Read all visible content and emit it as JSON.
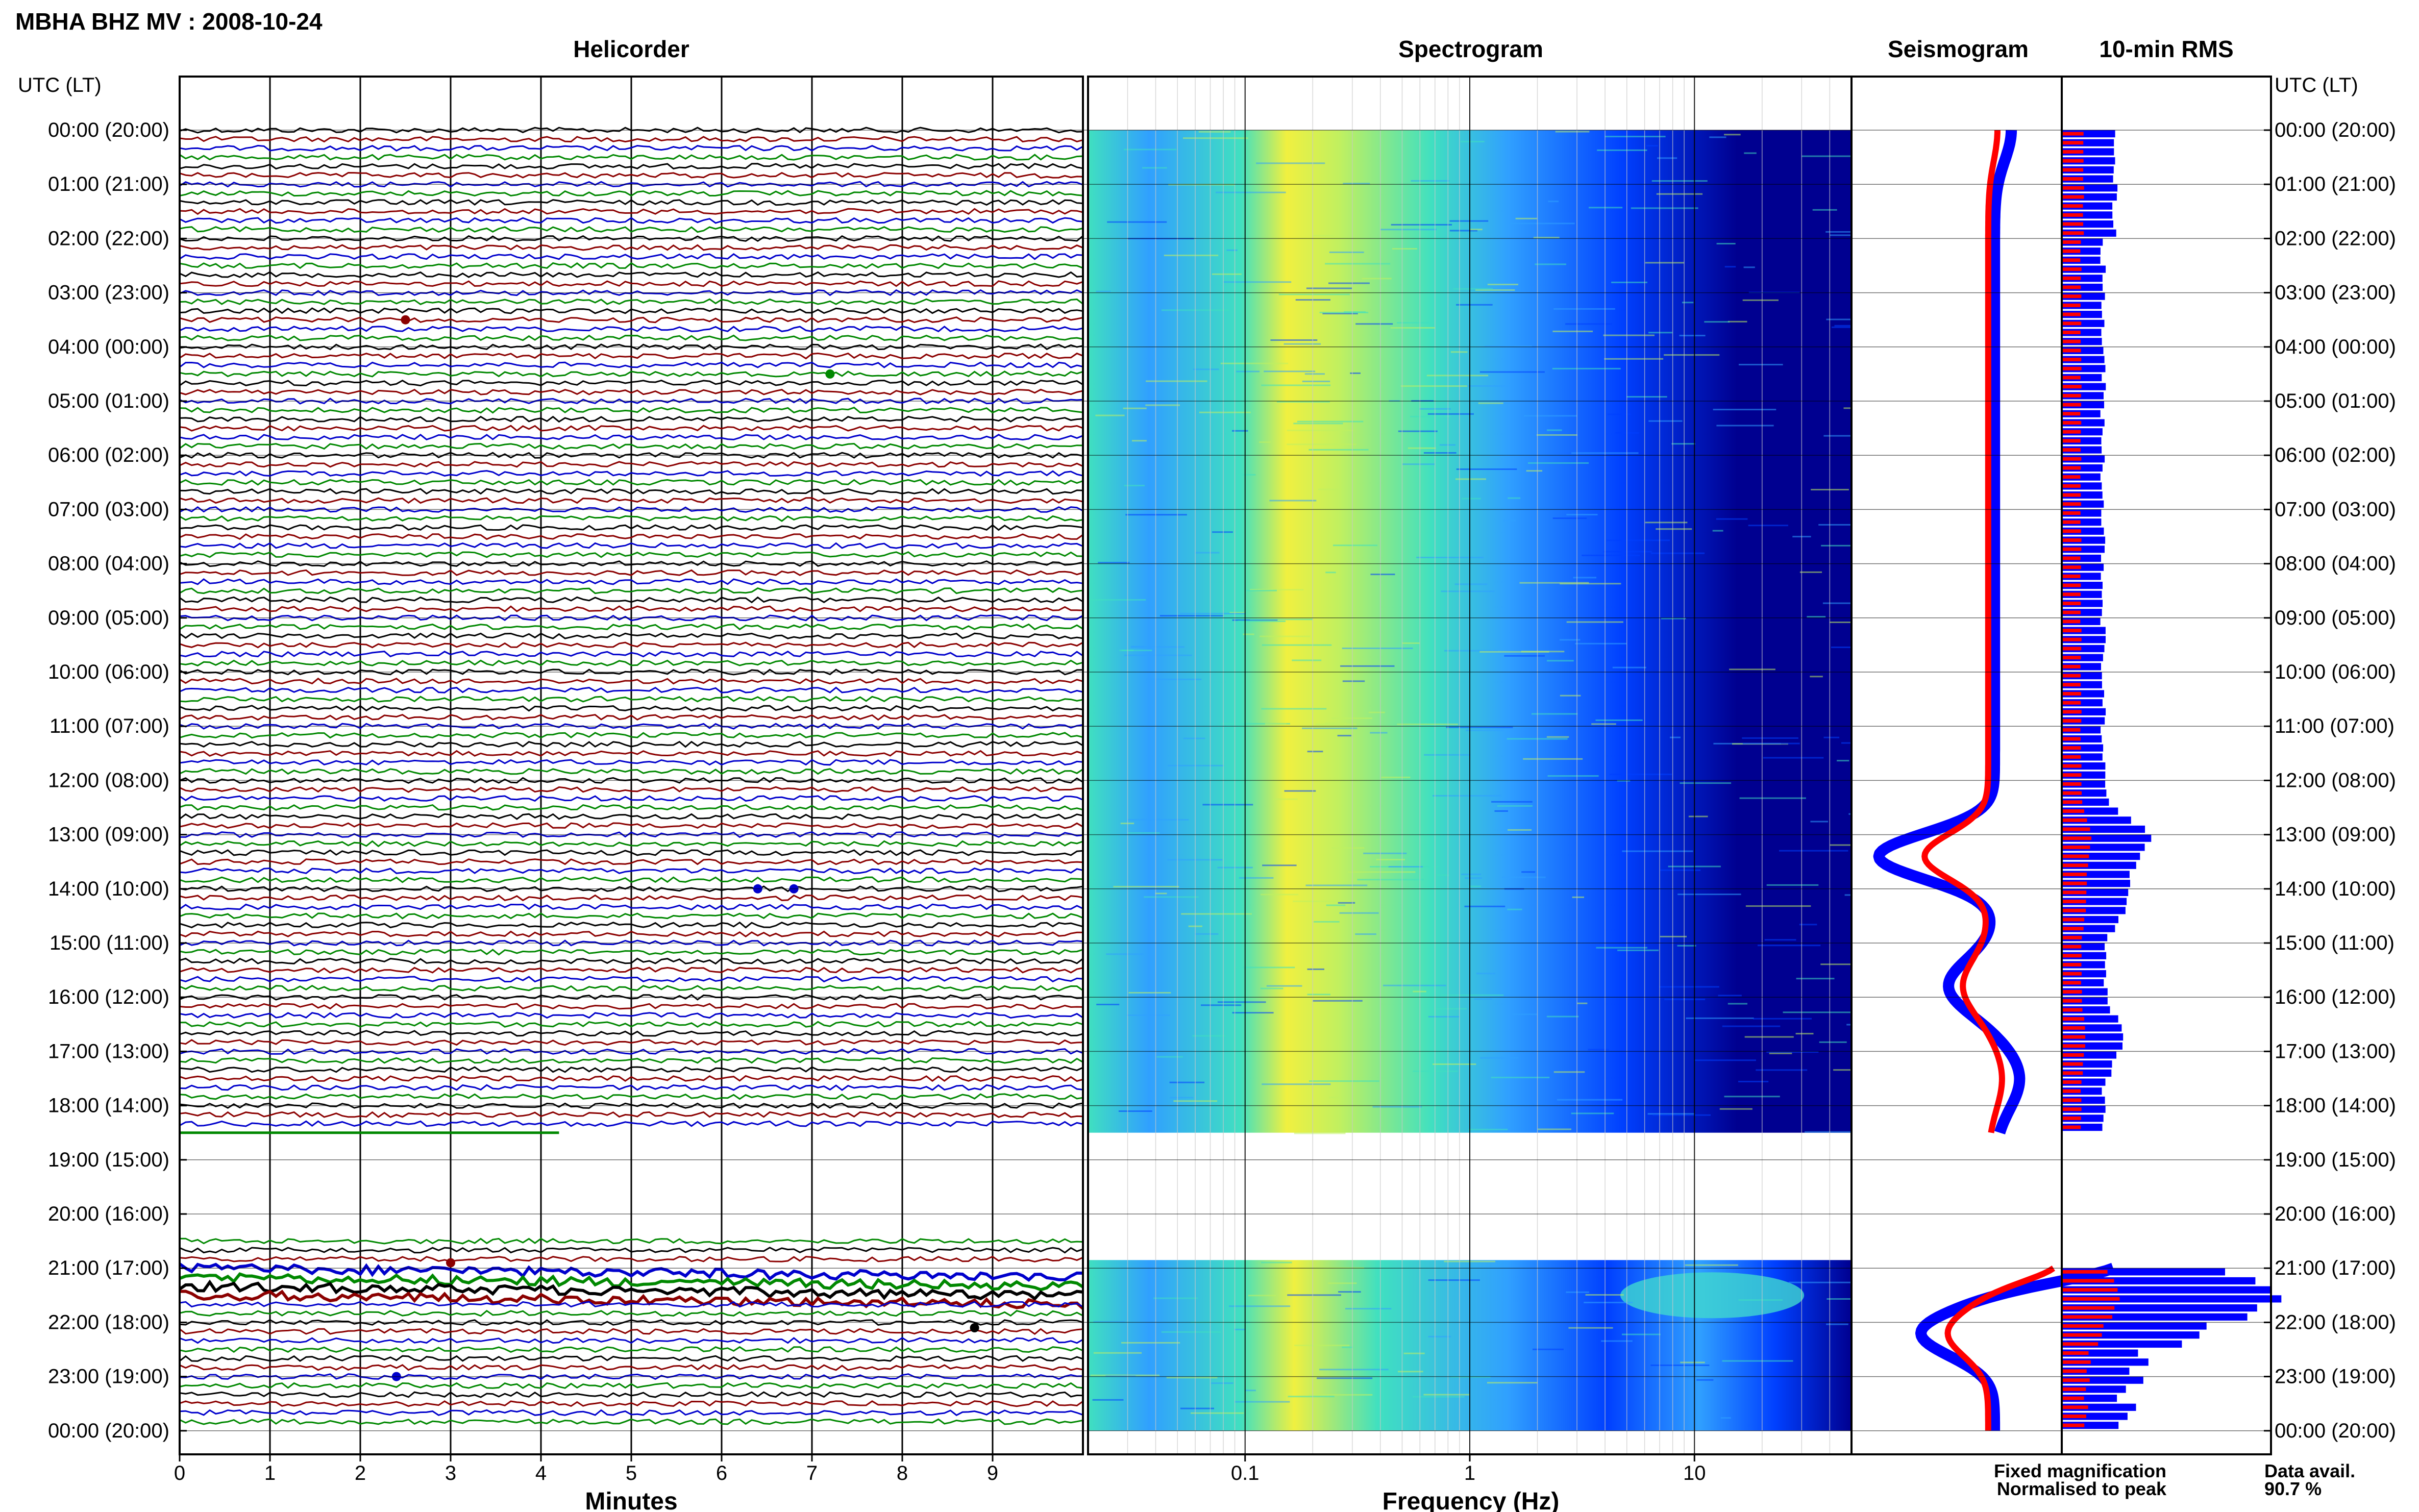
{
  "title": "MBHA BHZ MV : 2008-10-24",
  "time_axis_label": "UTC (LT)",
  "time_labels": [
    "00:00 (20:00)",
    "01:00 (21:00)",
    "02:00 (22:00)",
    "03:00 (23:00)",
    "04:00 (00:00)",
    "05:00 (01:00)",
    "06:00 (02:00)",
    "07:00 (03:00)",
    "08:00 (04:00)",
    "09:00 (05:00)",
    "10:00 (06:00)",
    "11:00 (07:00)",
    "12:00 (08:00)",
    "13:00 (09:00)",
    "14:00 (10:00)",
    "15:00 (11:00)",
    "16:00 (12:00)",
    "17:00 (13:00)",
    "18:00 (14:00)",
    "19:00 (15:00)",
    "20:00 (16:00)",
    "21:00 (17:00)",
    "22:00 (18:00)",
    "23:00 (19:00)",
    "00:00 (20:00)"
  ],
  "chart_data": [
    {
      "type": "line",
      "title": "Helicorder",
      "xlabel": "Minutes",
      "xlim": [
        0,
        10
      ],
      "x_ticks": [
        "0",
        "1",
        "2",
        "3",
        "4",
        "5",
        "6",
        "7",
        "8",
        "9"
      ],
      "ylabel": "UTC (LT)",
      "trace_colors": [
        "#000000",
        "#8b0000",
        "#0000cc",
        "#008800"
      ],
      "gaps_hours": [
        [
          18.5,
          20.5
        ]
      ]
    },
    {
      "type": "heatmap",
      "title": "Spectrogram",
      "xlabel": "Frequency (Hz)",
      "x_scale": "log",
      "xlim": [
        0.02,
        50
      ],
      "x_ticks": [
        "0.1",
        "1",
        "10"
      ],
      "colormap": [
        "#000090",
        "#0040ff",
        "#30a0ff",
        "#40e0c0",
        "#c0f060",
        "#f0f040"
      ],
      "peak_band_hz": [
        0.2,
        0.4
      ],
      "gaps_hours": [
        [
          18.5,
          20.5
        ]
      ]
    },
    {
      "type": "line",
      "title": "Seismogram",
      "series": [
        {
          "name": "Fixed magnification",
          "color": "#0000ff"
        },
        {
          "name": "Normalised to peak",
          "color": "#ff0000"
        }
      ],
      "gaps_hours": [
        [
          18.5,
          20.5
        ]
      ]
    },
    {
      "type": "bar",
      "title": "10-min RMS",
      "orientation": "horizontal",
      "series": [
        {
          "name": "Fixed magnification",
          "color": "#0000ff"
        },
        {
          "name": "Normalised to peak",
          "color": "#ff0000"
        }
      ],
      "gaps_hours": [
        [
          18.5,
          20.5
        ]
      ]
    }
  ],
  "legend": {
    "fixed_label": "Fixed magnification",
    "normalised_label": "Normalised to peak",
    "fixed_color": "#0000ff",
    "normalised_color": "#ff0000"
  },
  "data_availability": {
    "label": "Data avail.",
    "value": "90.7 %"
  }
}
